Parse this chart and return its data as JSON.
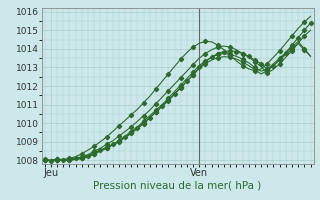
{
  "xlabel": "Pression niveau de la mer( hPa )",
  "bg_color": "#cce8ea",
  "grid_color": "#aacccc",
  "line_color": "#2d6a2d",
  "ylim": [
    1007.8,
    1016.2
  ],
  "xlim": [
    -0.5,
    43.5
  ],
  "yticks": [
    1008,
    1009,
    1010,
    1011,
    1012,
    1013,
    1014,
    1015,
    1016
  ],
  "xtick_pos": [
    1,
    25
  ],
  "xtick_labels": [
    "Jeu",
    "Ven"
  ],
  "vline_x": 25,
  "series": [
    [
      1008.05,
      1007.95,
      1008.05,
      1008.0,
      1008.05,
      1008.1,
      1008.15,
      1008.25,
      1008.4,
      1008.55,
      1008.7,
      1008.85,
      1009.05,
      1009.25,
      1009.5,
      1009.75,
      1010.0,
      1010.3,
      1010.6,
      1010.9,
      1011.2,
      1011.55,
      1011.9,
      1012.25,
      1012.6,
      1013.0,
      1013.3,
      1013.55,
      1013.75,
      1013.85,
      1013.9,
      1013.85,
      1013.75,
      1013.6,
      1013.4,
      1013.2,
      1012.9,
      1013.1,
      1013.4,
      1013.8,
      1014.2,
      1014.6,
      1015.0,
      1015.4
    ],
    [
      1008.0,
      1008.0,
      1008.0,
      1008.0,
      1008.05,
      1008.1,
      1008.2,
      1008.3,
      1008.5,
      1008.65,
      1008.85,
      1009.05,
      1009.3,
      1009.55,
      1009.8,
      1010.1,
      1010.4,
      1010.7,
      1011.05,
      1011.4,
      1011.75,
      1012.1,
      1012.45,
      1012.8,
      1013.15,
      1013.5,
      1013.75,
      1013.95,
      1014.1,
      1014.15,
      1014.1,
      1013.95,
      1013.75,
      1013.55,
      1013.3,
      1013.05,
      1012.7,
      1012.9,
      1013.2,
      1013.55,
      1013.9,
      1014.3,
      1014.7,
      1015.0
    ],
    [
      1008.0,
      1008.0,
      1008.0,
      1008.0,
      1008.0,
      1008.05,
      1008.1,
      1008.2,
      1008.35,
      1008.5,
      1008.65,
      1008.85,
      1009.05,
      1009.3,
      1009.55,
      1009.8,
      1010.1,
      1010.4,
      1010.7,
      1011.0,
      1011.35,
      1011.7,
      1012.05,
      1012.4,
      1012.75,
      1013.1,
      1013.35,
      1013.55,
      1013.7,
      1013.75,
      1013.7,
      1013.6,
      1013.45,
      1013.25,
      1013.0,
      1012.8,
      1012.9,
      1013.2,
      1013.5,
      1013.8,
      1014.1,
      1014.4,
      1014.0,
      1013.6
    ],
    [
      1008.0,
      1008.0,
      1008.0,
      1008.0,
      1008.0,
      1008.05,
      1008.1,
      1008.2,
      1008.35,
      1008.5,
      1008.65,
      1008.82,
      1009.0,
      1009.22,
      1009.45,
      1009.7,
      1009.98,
      1010.28,
      1010.6,
      1010.92,
      1011.25,
      1011.58,
      1011.92,
      1012.26,
      1012.6,
      1012.94,
      1013.2,
      1013.4,
      1013.52,
      1013.58,
      1013.55,
      1013.45,
      1013.3,
      1013.1,
      1012.88,
      1012.65,
      1012.82,
      1013.1,
      1013.4,
      1013.7,
      1014.0,
      1014.28,
      1013.95,
      1013.6
    ],
    [
      1008.0,
      1008.0,
      1008.05,
      1008.05,
      1008.1,
      1008.2,
      1008.35,
      1008.55,
      1008.75,
      1009.0,
      1009.25,
      1009.55,
      1009.85,
      1010.15,
      1010.45,
      1010.75,
      1011.1,
      1011.45,
      1011.85,
      1012.25,
      1012.65,
      1013.05,
      1013.45,
      1013.8,
      1014.1,
      1014.3,
      1014.4,
      1014.38,
      1014.2,
      1013.95,
      1013.65,
      1013.35,
      1013.1,
      1012.92,
      1012.82,
      1012.92,
      1013.2,
      1013.55,
      1013.9,
      1014.3,
      1014.7,
      1015.1,
      1015.45,
      1015.75
    ]
  ]
}
